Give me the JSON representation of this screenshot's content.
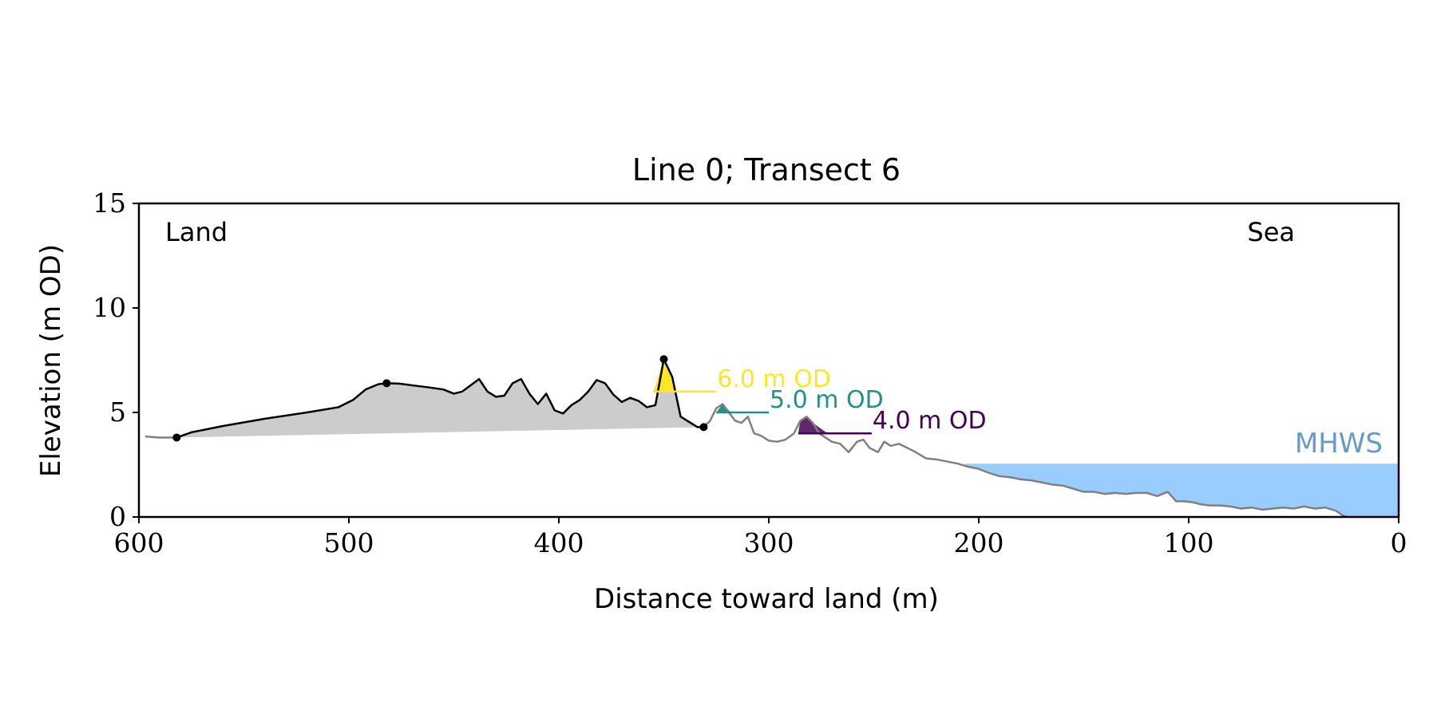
{
  "chart_data": {
    "type": "area",
    "title": "Line 0; Transect 6",
    "xlabel": "Distance toward land (m)",
    "ylabel": "Elevation (m OD)",
    "xlim": [
      600,
      0
    ],
    "ylim": [
      0,
      15
    ],
    "xticks": [
      600,
      500,
      400,
      300,
      200,
      100,
      0
    ],
    "yticks": [
      0,
      5,
      10,
      15
    ],
    "grid": false,
    "corner_labels": {
      "left": "Land",
      "right": "Sea"
    },
    "colors": {
      "profile": "#000000",
      "sea_profile": "#808080",
      "dune_fill": "#cccccc",
      "mhws_fill": "#99ccff",
      "mhws_text": "#6699cc",
      "level_6": "#fde725",
      "level_5": "#21918c",
      "level_4": "#440154"
    },
    "mhws": {
      "label": "MHWS",
      "elevation": 2.55
    },
    "landward_profile": {
      "x": [
        582,
        575,
        560,
        540,
        520,
        505,
        498,
        492,
        486,
        482,
        476,
        470,
        462,
        455,
        450,
        446,
        442,
        438,
        434,
        430,
        426,
        422,
        418,
        414,
        410,
        406,
        402,
        398,
        394,
        390,
        386,
        382,
        378,
        374,
        370,
        366,
        362,
        358,
        354,
        350,
        346,
        342,
        338,
        334,
        331
      ],
      "y": [
        3.8,
        4.05,
        4.35,
        4.7,
        5.0,
        5.25,
        5.6,
        6.1,
        6.35,
        6.4,
        6.38,
        6.3,
        6.2,
        6.1,
        5.9,
        6.0,
        6.3,
        6.6,
        6.0,
        5.75,
        5.8,
        6.4,
        6.6,
        5.9,
        5.4,
        5.9,
        5.1,
        4.95,
        5.35,
        5.6,
        6.0,
        6.55,
        6.4,
        5.85,
        5.5,
        5.7,
        5.55,
        5.25,
        5.35,
        7.55,
        6.7,
        4.8,
        4.55,
        4.3,
        4.3
      ]
    },
    "seaward_profile": {
      "x": [
        331,
        328,
        325,
        322,
        319,
        316,
        313,
        310,
        307,
        304,
        300,
        296,
        292,
        288,
        285,
        282,
        279,
        276,
        273,
        270,
        266,
        262,
        258,
        255,
        252,
        248,
        245,
        242,
        238,
        234,
        230,
        225,
        220,
        215,
        210,
        205,
        200,
        195,
        190,
        185,
        180,
        175,
        170,
        165,
        160,
        155,
        150,
        145,
        140,
        135,
        130,
        125,
        120,
        115,
        110,
        106,
        102,
        98,
        94,
        90,
        85,
        80,
        75,
        70,
        65,
        60,
        55,
        50,
        45,
        40,
        35,
        30,
        27,
        25
      ],
      "y": [
        4.3,
        4.6,
        5.2,
        5.4,
        5.0,
        4.6,
        4.5,
        4.8,
        4.0,
        3.9,
        3.65,
        3.6,
        3.7,
        4.0,
        4.6,
        4.8,
        4.5,
        4.0,
        3.8,
        3.6,
        3.5,
        3.1,
        3.6,
        3.7,
        3.3,
        3.1,
        3.6,
        3.4,
        3.5,
        3.3,
        3.1,
        2.8,
        2.75,
        2.65,
        2.55,
        2.4,
        2.3,
        2.1,
        1.95,
        1.9,
        1.8,
        1.75,
        1.65,
        1.55,
        1.5,
        1.35,
        1.2,
        1.2,
        1.1,
        1.15,
        1.1,
        1.15,
        1.15,
        1.0,
        1.2,
        0.75,
        0.75,
        0.7,
        0.6,
        0.55,
        0.55,
        0.5,
        0.4,
        0.45,
        0.35,
        0.4,
        0.45,
        0.4,
        0.5,
        0.4,
        0.45,
        0.3,
        0.1,
        0.0
      ]
    },
    "offshore_tail": {
      "x": [
        597,
        590,
        582
      ],
      "y": [
        3.85,
        3.8,
        3.8
      ]
    },
    "key_points": [
      {
        "x": 582,
        "y": 3.8
      },
      {
        "x": 482,
        "y": 6.4
      },
      {
        "x": 350,
        "y": 7.55
      },
      {
        "x": 331,
        "y": 4.3
      }
    ],
    "dune_base_line": {
      "x": [
        582,
        331
      ],
      "y": [
        3.8,
        4.3
      ]
    },
    "water_levels": [
      {
        "label": "6.0 m OD",
        "level": 6.0,
        "peak_x": 350,
        "fill_x": [
          355,
          345
        ],
        "line_x": [
          355,
          325
        ]
      },
      {
        "label": "5.0 m OD",
        "level": 5.0,
        "peak_x": 322,
        "fill_x": [
          325,
          318
        ],
        "line_x": [
          325,
          300
        ]
      },
      {
        "label": "4.0 m OD",
        "level": 4.0,
        "peak_x": 280,
        "fill_x": [
          286,
          272
        ],
        "line_x": [
          286,
          251
        ]
      }
    ]
  }
}
